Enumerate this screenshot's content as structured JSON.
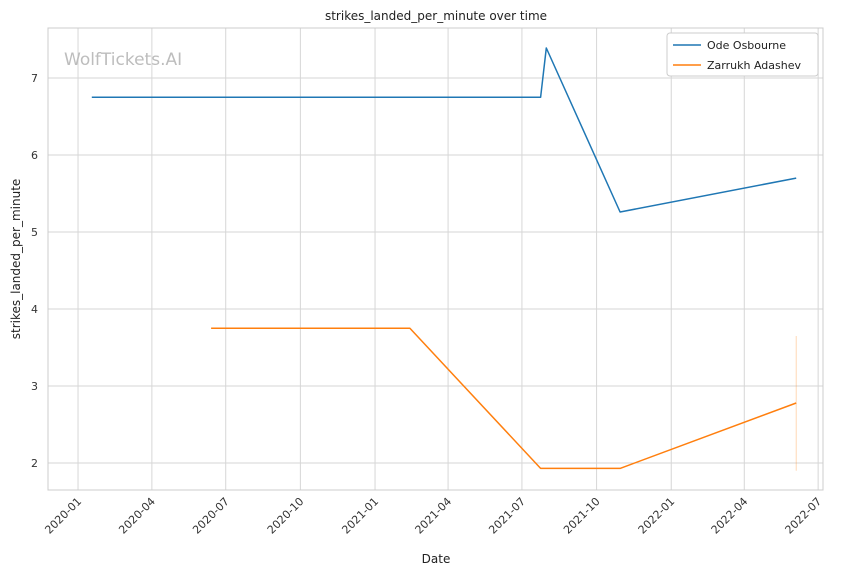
{
  "chart_data": {
    "type": "line",
    "title": "strikes_landed_per_minute over time",
    "xlabel": "Date",
    "ylabel": "strikes_landed_per_minute",
    "watermark": "WolfTickets.AI",
    "x_range": [
      "2019-11-25",
      "2022-07-07"
    ],
    "ylim": [
      1.65,
      7.65
    ],
    "x_ticks": [
      {
        "date": "2020-01-01",
        "label": "2020-01"
      },
      {
        "date": "2020-04-01",
        "label": "2020-04"
      },
      {
        "date": "2020-07-01",
        "label": "2020-07"
      },
      {
        "date": "2020-10-01",
        "label": "2020-10"
      },
      {
        "date": "2021-01-01",
        "label": "2021-01"
      },
      {
        "date": "2021-04-01",
        "label": "2021-04"
      },
      {
        "date": "2021-07-01",
        "label": "2021-07"
      },
      {
        "date": "2021-10-01",
        "label": "2021-10"
      },
      {
        "date": "2022-01-01",
        "label": "2022-01"
      },
      {
        "date": "2022-04-01",
        "label": "2022-04"
      },
      {
        "date": "2022-07-01",
        "label": "2022-07"
      }
    ],
    "y_ticks": [
      2,
      3,
      4,
      5,
      6,
      7
    ],
    "grid": true,
    "legend_position": "top-right",
    "series": [
      {
        "name": "Ode Osbourne",
        "color": "#1f77b4",
        "points": [
          {
            "x": "2020-01-18",
            "y": 6.75
          },
          {
            "x": "2021-07-24",
            "y": 6.75
          },
          {
            "x": "2021-07-31",
            "y": 7.39
          },
          {
            "x": "2021-10-30",
            "y": 5.26
          },
          {
            "x": "2022-06-04",
            "y": 5.7
          }
        ]
      },
      {
        "name": "Zarrukh Adashev",
        "color": "#ff7f0e",
        "points": [
          {
            "x": "2020-06-13",
            "y": 3.75
          },
          {
            "x": "2021-02-13",
            "y": 3.75
          },
          {
            "x": "2021-07-24",
            "y": 1.93
          },
          {
            "x": "2021-10-30",
            "y": 1.93
          },
          {
            "x": "2022-06-04",
            "y": 2.78
          }
        ],
        "band": {
          "x": "2022-06-04",
          "low": 1.9,
          "high": 3.65
        }
      }
    ]
  }
}
